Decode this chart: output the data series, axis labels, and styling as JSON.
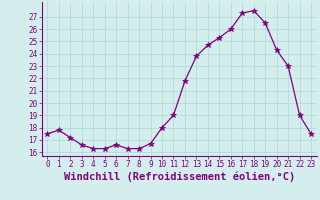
{
  "x": [
    0,
    1,
    2,
    3,
    4,
    5,
    6,
    7,
    8,
    9,
    10,
    11,
    12,
    13,
    14,
    15,
    16,
    17,
    18,
    19,
    20,
    21,
    22,
    23
  ],
  "y": [
    17.5,
    17.8,
    17.2,
    16.6,
    16.3,
    16.3,
    16.6,
    16.3,
    16.3,
    16.7,
    18.0,
    19.0,
    21.8,
    23.8,
    24.7,
    25.3,
    26.0,
    27.3,
    27.5,
    26.5,
    24.3,
    23.0,
    19.0,
    17.5
  ],
  "line_color": "#800080",
  "marker": "*",
  "marker_size": 4,
  "bg_color": "#d4eeee",
  "grid_color": "#b0d8d8",
  "xlabel": "Windchill (Refroidissement éolien,°C)",
  "xlabel_fontsize": 7.5,
  "ytick_labels": [
    "16",
    "17",
    "18",
    "19",
    "20",
    "21",
    "22",
    "23",
    "24",
    "25",
    "26",
    "27"
  ],
  "ytick_values": [
    16,
    17,
    18,
    19,
    20,
    21,
    22,
    23,
    24,
    25,
    26,
    27
  ],
  "xtick_values": [
    0,
    1,
    2,
    3,
    4,
    5,
    6,
    7,
    8,
    9,
    10,
    11,
    12,
    13,
    14,
    15,
    16,
    17,
    18,
    19,
    20,
    21,
    22,
    23
  ],
  "ylim": [
    15.7,
    28.2
  ],
  "xlim": [
    -0.5,
    23.5
  ],
  "tick_fontsize": 5.5,
  "spine_color": "#800080"
}
